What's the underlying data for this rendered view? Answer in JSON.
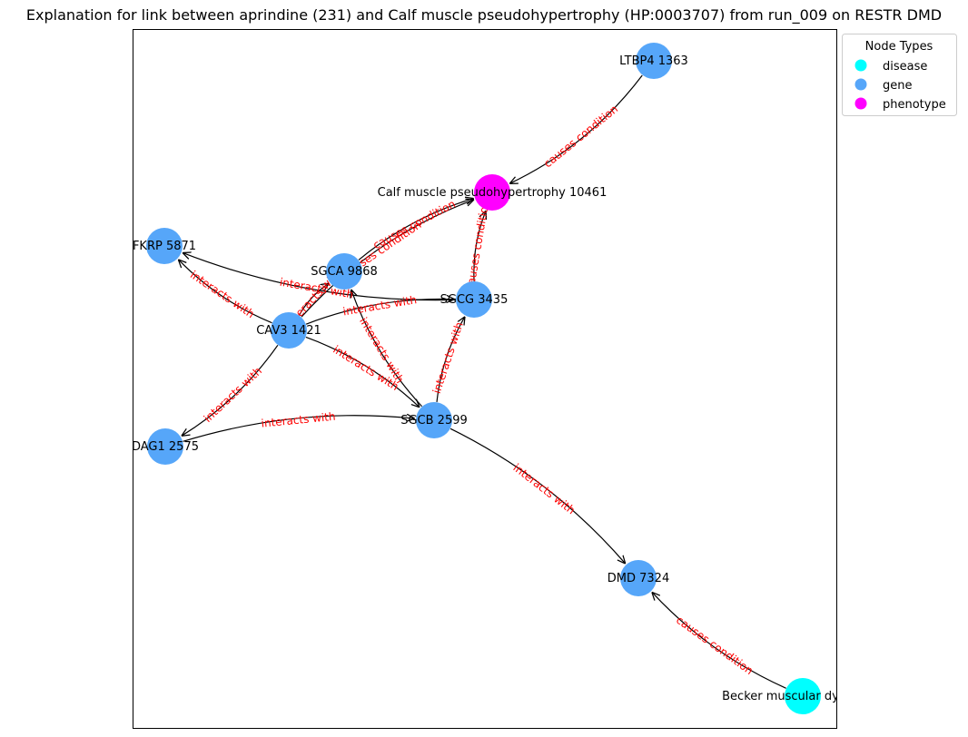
{
  "title": "Explanation for link between aprindine (231) and Calf muscle pseudohypertrophy (HP:0003707) from run_009 on RESTR DMD",
  "legend": {
    "title": "Node Types",
    "items": [
      {
        "label": "disease",
        "color": "#00ffff"
      },
      {
        "label": "gene",
        "color": "#56a6f9"
      },
      {
        "label": "phenotype",
        "color": "#ff00ff"
      }
    ]
  },
  "colors": {
    "disease": "#00ffff",
    "gene": "#56a6f9",
    "phenotype": "#ff00ff",
    "edge": "#000000",
    "edge_label": "#ff0000"
  },
  "nodes": [
    {
      "id": "ltbp4",
      "label": "LTBP4 1363",
      "type": "gene"
    },
    {
      "id": "calf",
      "label": "Calf muscle pseudohypertrophy 10461",
      "type": "phenotype"
    },
    {
      "id": "fkrp",
      "label": "FKRP 5871",
      "type": "gene"
    },
    {
      "id": "sgca",
      "label": "SGCA 9868",
      "type": "gene"
    },
    {
      "id": "sgcg",
      "label": "SGCG 3435",
      "type": "gene"
    },
    {
      "id": "cav3",
      "label": "CAV3 1421",
      "type": "gene"
    },
    {
      "id": "dag1",
      "label": "DAG1 2575",
      "type": "gene"
    },
    {
      "id": "sgcb",
      "label": "SGCB 2599",
      "type": "gene"
    },
    {
      "id": "dmd",
      "label": "DMD 7324",
      "type": "gene"
    },
    {
      "id": "becker",
      "label": "Becker muscular dystrophy",
      "type": "disease"
    }
  ],
  "edges": [
    {
      "source": "ltbp4",
      "target": "calf",
      "label": "causes condition"
    },
    {
      "source": "sgca",
      "target": "calf",
      "label": "causes condition"
    },
    {
      "source": "cav3",
      "target": "calf",
      "label": "causes condition"
    },
    {
      "source": "sgcg",
      "target": "calf",
      "label": "causes condition"
    },
    {
      "source": "sgcg",
      "target": "fkrp",
      "label": "interacts with"
    },
    {
      "source": "cav3",
      "target": "fkrp",
      "label": "interacts with"
    },
    {
      "source": "cav3",
      "target": "sgca",
      "label": "interacts with"
    },
    {
      "source": "cav3",
      "target": "sgcg",
      "label": "interacts with"
    },
    {
      "source": "cav3",
      "target": "dag1",
      "label": "interacts with"
    },
    {
      "source": "cav3",
      "target": "sgcb",
      "label": "interacts with"
    },
    {
      "source": "dag1",
      "target": "sgcb",
      "label": "interacts with"
    },
    {
      "source": "sgcb",
      "target": "sgca",
      "label": "interacts with"
    },
    {
      "source": "sgcb",
      "target": "sgcg",
      "label": "interacts with"
    },
    {
      "source": "sgcb",
      "target": "dmd",
      "label": "interacts with"
    },
    {
      "source": "becker",
      "target": "dmd",
      "label": "causes condition"
    }
  ]
}
